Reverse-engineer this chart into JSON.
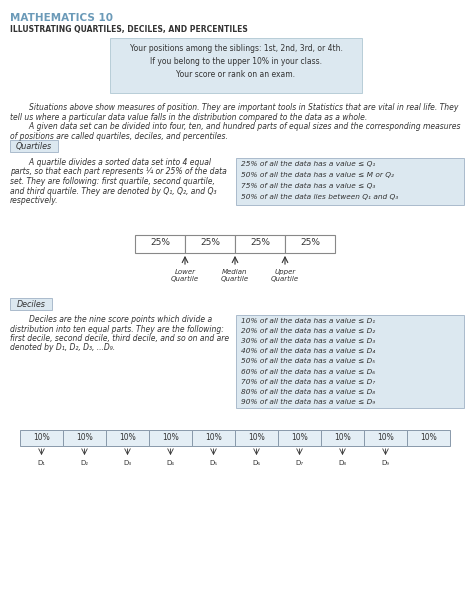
{
  "title": "MATHEMATICS 10",
  "subtitle": "ILLUSTRATING QUARTILES, DECILES, AND PERCENTILES",
  "title_color": "#6b9ab8",
  "subtitle_color": "#333333",
  "bg_color": "#ffffff",
  "light_blue": "#dce8f0",
  "box_lines": [
    "Your positions among the siblings: 1st, 2nd, 3rd, or 4th.",
    "If you belong to the upper 10% in your class.",
    "Your score or rank on an exam."
  ],
  "para1_indent": "        Situations above show measures of position. They are important tools in Statistics that are vital in real life. They",
  "para1_cont": "tell us where a particular data value falls in the distribution compared to the data as a whole.",
  "para2_indent": "        A given data set can be divided into four, ten, and hundred parts of equal sizes and the corresponding measures",
  "para2_cont": "of positions are called quartiles, deciles, and percentiles.",
  "quartiles_label": "Quartiles",
  "qt_line1": "        A quartile divides a sorted data set into 4 equal",
  "qt_line2": "parts, so that each part represents ¼ or 25% of the data",
  "qt_line3": "set. They are following: first quartile, second quartile,",
  "qt_line4": "and third quartile. They are denoted by Q₁, Q₂, and Q₃",
  "qt_line5": "respectively.",
  "quartiles_box": [
    "25% of all the data has a value ≤ Q₁",
    "50% of all the data has a value ≤ M or Q₂",
    "75% of all the data has a value ≤ Q₃",
    "50% of all the data lies between Q₁ and Q₃"
  ],
  "q_segments": [
    "25%",
    "25%",
    "25%",
    "25%"
  ],
  "q_arrow_labels": [
    "Lower\nQuartile",
    "Median\nQuartile",
    "Upper\nQuartile"
  ],
  "deciles_label": "Deciles",
  "dt_line1": "        Deciles are the nine score points which divide a",
  "dt_line2": "distribution into ten equal parts. They are the following:",
  "dt_line3": "first decile, second decile, third decile, and so on and are",
  "dt_line4": "denoted by D₁, D₂, D₃, ...D₉.",
  "deciles_box": [
    "10% of all the data has a value ≤ D₁",
    "20% of all the data has a value ≤ D₂",
    "30% of all the data has a value ≤ D₃",
    "40% of all the data has a value ≤ D₄",
    "50% of all the data has a value ≤ D₅",
    "60% of all the data has a value ≤ D₆",
    "70% of all the data has a value ≤ D₇",
    "80% of all the data has a value ≤ D₈",
    "90% of all the data has a value ≤ D₉"
  ],
  "d_segments": [
    "10%",
    "10%",
    "10%",
    "10%",
    "10%",
    "10%",
    "10%",
    "10%",
    "10%",
    "10%"
  ],
  "d_labels": [
    "D₁",
    "D₂",
    "D₃",
    "D₄",
    "D₅",
    "D₆",
    "D₇",
    "D₈",
    "D₉"
  ]
}
